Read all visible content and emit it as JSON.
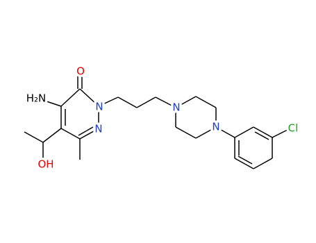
{
  "labels": [
    "H₂N",
    "O",
    "N",
    "N",
    "N",
    "N",
    "OH",
    "Cl"
  ]
}
